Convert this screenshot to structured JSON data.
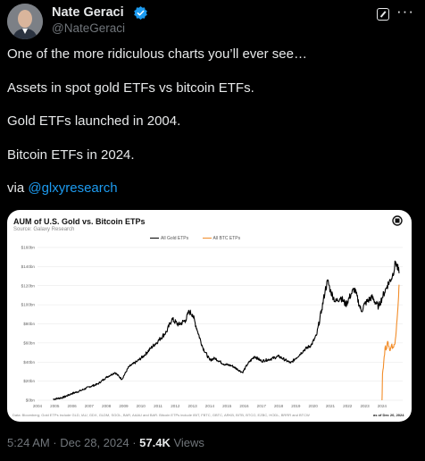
{
  "author": {
    "name": "Nate Geraci",
    "handle": "@NateGeraci"
  },
  "icons": {
    "verified": "verified-badge-icon",
    "grok": "grok-icon",
    "more": "more-options-icon"
  },
  "tweet": {
    "lines": [
      "One of the more ridiculous charts you’ll ever see…",
      "Assets in spot gold ETFs vs bitcoin ETFs.",
      "Gold ETFs launched in 2004.",
      "Bitcoin ETFs in 2024."
    ],
    "via_prefix": "via ",
    "via_link": "@glxyresearch"
  },
  "chart_data": {
    "type": "line",
    "title": "AUM of U.S. Gold vs. Bitcoin ETPs",
    "subtitle": "Source: Galaxy Research",
    "logo_text": "galaxy",
    "ylim": [
      0,
      160
    ],
    "y_ticks": [
      "$0bn",
      "$20bn",
      "$40bn",
      "$60bn",
      "$80bn",
      "$100bn",
      "$120bn",
      "$140bn",
      "$160bn"
    ],
    "x_ticks": [
      "2004",
      "2005",
      "2006",
      "2007",
      "2008",
      "2009",
      "2010",
      "2011",
      "2012",
      "2013",
      "2014",
      "2015",
      "2016",
      "2017",
      "2018",
      "2019",
      "2020",
      "2021",
      "2022",
      "2023",
      "2024"
    ],
    "legend_position": "top-center",
    "colors": {
      "gold": "#000000",
      "btc": "#f28c28",
      "grid": "#e6e6e6"
    },
    "series": [
      {
        "name": "All Gold ETPs",
        "points": [
          [
            2004.9,
            1
          ],
          [
            2005.5,
            3
          ],
          [
            2006.0,
            7
          ],
          [
            2006.5,
            10
          ],
          [
            2007.0,
            14
          ],
          [
            2007.5,
            17
          ],
          [
            2008.0,
            24
          ],
          [
            2008.5,
            29
          ],
          [
            2008.9,
            22
          ],
          [
            2009.3,
            35
          ],
          [
            2009.8,
            41
          ],
          [
            2010.2,
            47
          ],
          [
            2010.6,
            55
          ],
          [
            2011.0,
            62
          ],
          [
            2011.5,
            72
          ],
          [
            2011.8,
            85
          ],
          [
            2012.2,
            79
          ],
          [
            2012.6,
            84
          ],
          [
            2012.8,
            93
          ],
          [
            2013.0,
            90
          ],
          [
            2013.3,
            72
          ],
          [
            2013.6,
            55
          ],
          [
            2014.0,
            42
          ],
          [
            2014.3,
            44
          ],
          [
            2014.8,
            38
          ],
          [
            2015.3,
            36
          ],
          [
            2015.9,
            29
          ],
          [
            2016.2,
            38
          ],
          [
            2016.6,
            46
          ],
          [
            2017.0,
            41
          ],
          [
            2017.5,
            43
          ],
          [
            2018.0,
            46
          ],
          [
            2018.7,
            39
          ],
          [
            2019.0,
            44
          ],
          [
            2019.5,
            53
          ],
          [
            2019.9,
            58
          ],
          [
            2020.2,
            68
          ],
          [
            2020.5,
            95
          ],
          [
            2020.7,
            115
          ],
          [
            2020.85,
            125
          ],
          [
            2021.0,
            115
          ],
          [
            2021.3,
            103
          ],
          [
            2021.6,
            108
          ],
          [
            2021.9,
            100
          ],
          [
            2022.2,
            111
          ],
          [
            2022.4,
            117
          ],
          [
            2022.8,
            93
          ],
          [
            2023.0,
            101
          ],
          [
            2023.4,
            108
          ],
          [
            2023.8,
            98
          ],
          [
            2024.0,
            107
          ],
          [
            2024.3,
            120
          ],
          [
            2024.6,
            130
          ],
          [
            2024.8,
            145
          ],
          [
            2024.99,
            133
          ]
        ]
      },
      {
        "name": "All BTC ETPs",
        "points": [
          [
            2024.0,
            0
          ],
          [
            2024.03,
            28
          ],
          [
            2024.1,
            40
          ],
          [
            2024.2,
            57
          ],
          [
            2024.25,
            54
          ],
          [
            2024.35,
            61
          ],
          [
            2024.45,
            52
          ],
          [
            2024.55,
            58
          ],
          [
            2024.65,
            55
          ],
          [
            2024.75,
            59
          ],
          [
            2024.85,
            80
          ],
          [
            2024.95,
            105
          ],
          [
            2024.99,
            121
          ]
        ]
      }
    ],
    "source_note": "Data: Bloomberg; Gold ETPs include GLD, IAU, GDX, GLDM, SGOL, BAR, AAAU and BAR. Bitcoin ETPs include IBIT, FBTC, GBTC, ARKB, BITB, BTCO, EZBC, HODL, BRRR and BTCW",
    "as_of": "as of Dec 20, 2024"
  },
  "footer": {
    "time": "5:24 AM · Dec 28, 2024 · ",
    "views_count": "57.4K",
    "views_label": " Views"
  }
}
